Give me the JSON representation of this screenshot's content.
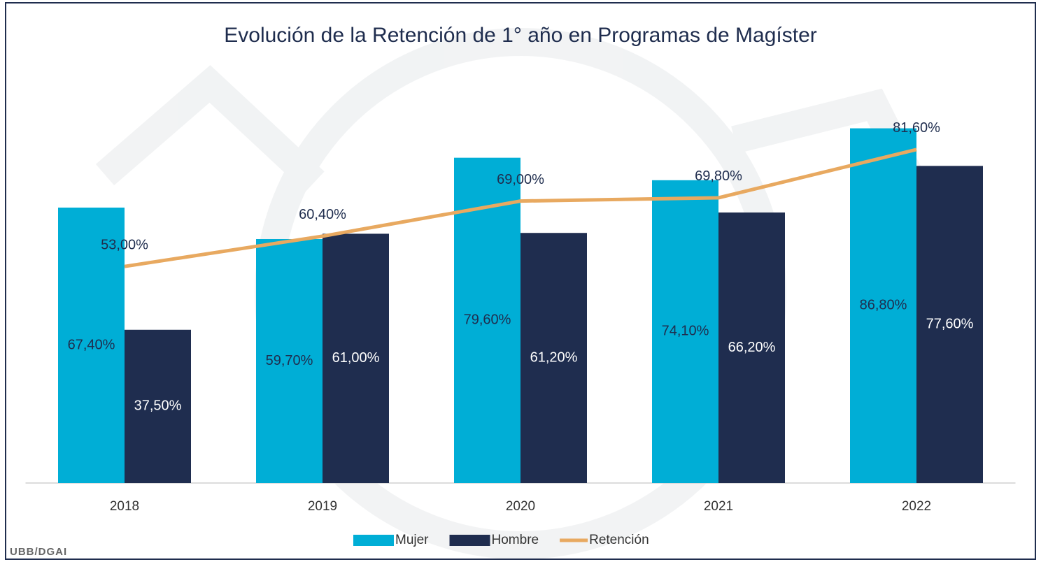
{
  "chart_data": {
    "type": "combo",
    "title": "Evolución de la Retención de 1° año en Programas de Magíster",
    "footer": "UBB/DGAI",
    "categories": [
      "2018",
      "2019",
      "2020",
      "2021",
      "2022"
    ],
    "series": [
      {
        "name": "Mujer",
        "type": "bar",
        "color": "#00aed6",
        "label_color": "#1f2d4e",
        "values": [
          67.4,
          59.7,
          79.6,
          74.1,
          86.8
        ],
        "value_labels": [
          "67,40%",
          "59,70%",
          "79,60%",
          "74,10%",
          "86,80%"
        ]
      },
      {
        "name": "Hombre",
        "type": "bar",
        "color": "#1f2d4f",
        "label_color": "#ffffff",
        "values": [
          37.5,
          61.0,
          61.2,
          66.2,
          77.6
        ],
        "value_labels": [
          "37,50%",
          "61,00%",
          "61,20%",
          "66,20%",
          "77,60%"
        ]
      },
      {
        "name": "Retención",
        "type": "line",
        "color": "#e8a960",
        "label_color": "#1f2d4e",
        "values": [
          53.0,
          60.4,
          69.0,
          69.8,
          81.6
        ],
        "value_labels": [
          "53,00%",
          "60,40%",
          "69,00%",
          "69,80%",
          "81,60%"
        ]
      }
    ],
    "ylim": [
      0,
      100
    ],
    "legend": "bottom"
  }
}
